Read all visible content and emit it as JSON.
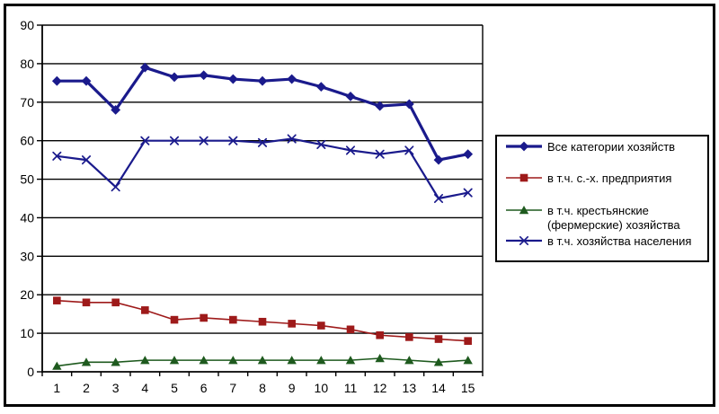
{
  "chart_data": {
    "type": "line",
    "title": "",
    "xlabel": "",
    "ylabel": "",
    "categories": [
      "1",
      "2",
      "3",
      "4",
      "5",
      "6",
      "7",
      "8",
      "9",
      "10",
      "11",
      "12",
      "13",
      "14",
      "15"
    ],
    "series": [
      {
        "name": "Все категории хозяйств",
        "marker": "diamond",
        "color": "#1a1a8c",
        "line_width": 3.2,
        "values": [
          75.5,
          75.5,
          68,
          79,
          76.5,
          77,
          76,
          75.5,
          76,
          74,
          71.5,
          69,
          69.5,
          55,
          56.5
        ]
      },
      {
        "name": "в т.ч. с.-х. предприятия",
        "marker": "square",
        "color": "#9e1a1a",
        "line_width": 1.6,
        "values": [
          18.5,
          18,
          18,
          16,
          13.5,
          14,
          13.5,
          13,
          12.5,
          12,
          11,
          9.5,
          9,
          8.5,
          8
        ]
      },
      {
        "name": "в т.ч. крестьянские\n(фермерские) хозяйства",
        "marker": "triangle",
        "color": "#1e5a1e",
        "line_width": 1.6,
        "values": [
          1.5,
          2.5,
          2.5,
          3,
          3,
          3,
          3,
          3,
          3,
          3,
          3,
          3.5,
          3,
          2.5,
          3
        ]
      },
      {
        "name": "в т.ч. хозяйства населения",
        "marker": "x",
        "color": "#1a1a8c",
        "line_width": 2.2,
        "values": [
          56,
          55,
          48,
          60,
          60,
          60,
          60,
          59.5,
          60.5,
          59,
          57.5,
          56.5,
          57.5,
          45,
          46.5
        ]
      }
    ],
    "ylim": [
      0,
      90
    ],
    "yticks": [
      0,
      10,
      20,
      30,
      40,
      50,
      60,
      70,
      80,
      90
    ],
    "grid": true,
    "legend_position": "right",
    "axis_color": "#000000",
    "grid_color": "#000000",
    "background": "#ffffff"
  }
}
